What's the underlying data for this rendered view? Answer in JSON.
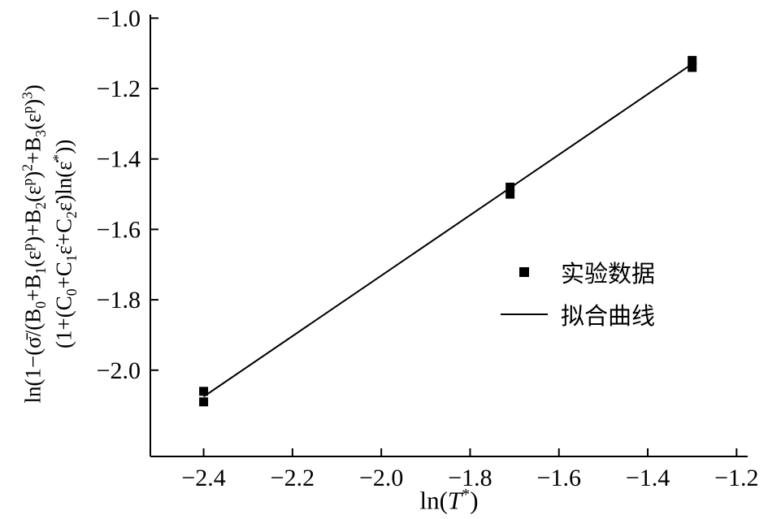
{
  "chart_data": {
    "type": "scatter",
    "title": "",
    "xlabel": {
      "pre": "ln(",
      "var": "T",
      "sup": "*",
      "post": ")"
    },
    "ylabel_lines": [
      "ln(1−(σ̄/(B_0+B_1(ε^p)+B_2(ε^p)^2+B_3(ε^p)^3)",
      "(1+(C_0+C_1ε̇+C_2ε̇)ln(ε̇^*))"
    ],
    "xlim": [
      -2.52,
      -1.175
    ],
    "ylim": [
      -2.245,
      -0.99
    ],
    "x_ticks": [
      -2.4,
      -2.2,
      -2.0,
      -1.8,
      -1.6,
      -1.4,
      -1.2
    ],
    "y_ticks": [
      -1.0,
      -1.2,
      -1.4,
      -1.6,
      -1.8,
      -2.0
    ],
    "grid": false,
    "points": [
      [
        -2.4,
        -2.06
      ],
      [
        -2.4,
        -2.09
      ],
      [
        -1.71,
        -1.48
      ],
      [
        -1.71,
        -1.5
      ],
      [
        -1.3,
        -1.12
      ],
      [
        -1.3,
        -1.14
      ]
    ],
    "fit_line": {
      "x1": -2.4,
      "y1": -2.075,
      "x2": -1.3,
      "y2": -1.13
    },
    "legend": [
      {
        "symbol": "square-marker",
        "label": "实验数据"
      },
      {
        "symbol": "line",
        "label": "拟合曲线"
      }
    ],
    "legend_position": "center-right",
    "colors": {
      "data": "#000000",
      "line": "#000000",
      "axis": "#000000",
      "background": "#ffffff"
    }
  }
}
